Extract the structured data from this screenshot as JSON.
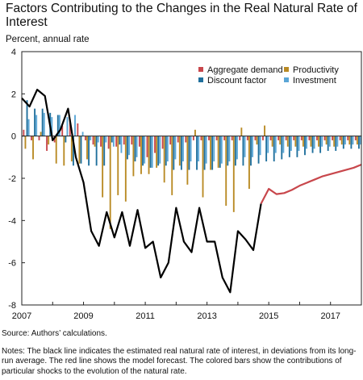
{
  "title": "Factors Contributing to the Changes in the Real Natural Rate of Interest",
  "subtitle": "Percent, annual rate",
  "source": "Source: Authors’ calculations.",
  "notes": "Notes: The black line indicates the estimated real natural rate of interest, in deviations from its long-run average. The red line shows the model forecast. The colored bars show the contributions of particular shocks to the evolution of the natural rate.",
  "colors": {
    "aggregate_demand": "#c8474c",
    "productivity": "#b98a24",
    "discount_factor": "#1f6f9c",
    "investment": "#5aa6d6",
    "estimate": "#000000",
    "forecast": "#c8474c"
  },
  "legend": [
    {
      "label": "Aggregate demand",
      "key": "aggregate_demand"
    },
    {
      "label": "Productivity",
      "key": "productivity"
    },
    {
      "label": "Discount factor",
      "key": "discount_factor"
    },
    {
      "label": "Investment",
      "key": "investment"
    }
  ],
  "chart_data": {
    "type": "bar",
    "x_range": [
      2007,
      2018
    ],
    "y_range": [
      -8,
      4
    ],
    "xticks": [
      "2007",
      "2009",
      "2011",
      "2013",
      "2015",
      "2017"
    ],
    "yticks": [
      "-8",
      "-6",
      "-4",
      "-2",
      "0",
      "2",
      "4"
    ],
    "quarters": [
      "2007Q1",
      "2007Q2",
      "2007Q3",
      "2007Q4",
      "2008Q1",
      "2008Q2",
      "2008Q3",
      "2008Q4",
      "2009Q1",
      "2009Q2",
      "2009Q3",
      "2009Q4",
      "2010Q1",
      "2010Q2",
      "2010Q3",
      "2010Q4",
      "2011Q1",
      "2011Q2",
      "2011Q3",
      "2011Q4",
      "2012Q1",
      "2012Q2",
      "2012Q3",
      "2012Q4",
      "2013Q1",
      "2013Q2",
      "2013Q3",
      "2013Q4",
      "2014Q1",
      "2014Q2",
      "2014Q3",
      "2014Q4",
      "2015Q1",
      "2015Q2",
      "2015Q3",
      "2015Q4",
      "2016Q1",
      "2016Q2",
      "2016Q3",
      "2016Q4",
      "2017Q1",
      "2017Q2",
      "2017Q3",
      "2017Q4"
    ],
    "bar_series": [
      {
        "name": "Aggregate demand",
        "key": "aggregate_demand",
        "values": [
          0.3,
          -0.2,
          -0.2,
          -0.7,
          -0.3,
          0.5,
          0.8,
          0.6,
          -0.2,
          -0.4,
          -0.5,
          -0.6,
          -0.5,
          -0.4,
          -0.4,
          -0.5,
          -1.0,
          -0.8,
          -0.6,
          -0.4,
          -0.3,
          -0.3,
          -0.2,
          -0.2,
          -0.2,
          -0.2,
          -0.2,
          -0.2,
          -0.2,
          -0.2,
          -0.2,
          -0.2,
          -0.2,
          -0.2,
          -0.2,
          -0.2,
          -0.2,
          -0.2,
          -0.2,
          -0.2,
          -0.2,
          -0.2,
          -0.2,
          -0.2
        ]
      },
      {
        "name": "Productivity",
        "key": "productivity",
        "values": [
          -0.6,
          -1.1,
          0.2,
          -0.4,
          -1.3,
          -1.4,
          -1.2,
          -1.3,
          -1.1,
          -0.5,
          -2.9,
          -4.4,
          -2.8,
          -3.1,
          -1.9,
          -1.8,
          -1.8,
          -1.5,
          -2.2,
          -2.8,
          -1.4,
          -2.3,
          0.3,
          -2.9,
          -1.6,
          -1.5,
          -3.3,
          -3.6,
          0.4,
          -2.5,
          -0.4,
          0.5,
          -0.5,
          -0.4,
          -0.5,
          -0.5,
          -0.5,
          -0.5,
          -0.5,
          -0.4,
          -0.5,
          -0.4,
          -0.4,
          -0.4
        ]
      },
      {
        "name": "Discount factor",
        "key": "discount_factor",
        "values": [
          1.7,
          1.3,
          1.3,
          1.1,
          1.0,
          -0.3,
          -1.4,
          -1.3,
          -1.4,
          -1.4,
          -1.4,
          -0.3,
          -0.4,
          -1.1,
          -1.2,
          -1.4,
          -1.5,
          -1.4,
          -1.4,
          -1.6,
          -1.6,
          -1.6,
          -1.6,
          -1.6,
          -1.6,
          -1.5,
          -1.4,
          -1.4,
          -1.4,
          -1.4,
          -1.3,
          -1.2,
          -1.2,
          -1.1,
          -1.0,
          -1.0,
          -0.9,
          -0.8,
          -0.8,
          -0.7,
          -0.7,
          -0.6,
          -0.6,
          -0.6
        ]
      },
      {
        "name": "Investment",
        "key": "investment",
        "values": [
          0.8,
          1.0,
          1.1,
          0.9,
          1.0,
          0.9,
          1.0,
          0.2,
          -0.2,
          -0.3,
          -0.3,
          -0.5,
          -0.8,
          -0.9,
          -1.0,
          -1.3,
          -1.5,
          -1.3,
          -1.2,
          -1.1,
          -1.2,
          -1.2,
          -1.2,
          -1.3,
          -1.2,
          -1.3,
          -1.2,
          -1.1,
          -1.0,
          -1.0,
          -0.9,
          -0.8,
          -0.8,
          -0.8,
          -0.7,
          -0.7,
          -0.6,
          -0.6,
          -0.5,
          -0.5,
          -0.5,
          -0.4,
          -0.4,
          -0.4
        ]
      }
    ],
    "line_series": [
      {
        "name": "Estimate",
        "key": "estimate",
        "x": [
          2007.0,
          2007.25,
          2007.5,
          2007.75,
          2008.0,
          2008.25,
          2008.5,
          2008.75,
          2009.0,
          2009.25,
          2009.5,
          2009.75,
          2010.0,
          2010.25,
          2010.5,
          2010.75,
          2011.0,
          2011.25,
          2011.5,
          2011.75,
          2012.0,
          2012.25,
          2012.5,
          2012.75,
          2013.0,
          2013.25,
          2013.5,
          2013.75,
          2014.0,
          2014.25,
          2014.5,
          2014.75
        ],
        "y": [
          1.8,
          1.4,
          2.2,
          1.9,
          -0.2,
          0.3,
          1.3,
          -1.0,
          -2.2,
          -4.5,
          -5.2,
          -3.6,
          -4.8,
          -3.6,
          -5.2,
          -3.5,
          -5.3,
          -5.0,
          -6.7,
          -6.0,
          -3.4,
          -5.0,
          -5.5,
          -3.4,
          -5.0,
          -5.0,
          -6.7,
          -7.4,
          -4.5,
          -4.9,
          -5.4,
          -3.2
        ]
      },
      {
        "name": "Forecast",
        "key": "forecast",
        "x": [
          2014.75,
          2015.0,
          2015.25,
          2015.5,
          2015.75,
          2016.0,
          2016.25,
          2016.5,
          2016.75,
          2017.0,
          2017.25,
          2017.5,
          2017.75,
          2018.0
        ],
        "y": [
          -3.2,
          -2.5,
          -2.75,
          -2.7,
          -2.55,
          -2.35,
          -2.2,
          -2.05,
          -1.9,
          -1.8,
          -1.7,
          -1.6,
          -1.5,
          -1.35
        ]
      }
    ]
  }
}
